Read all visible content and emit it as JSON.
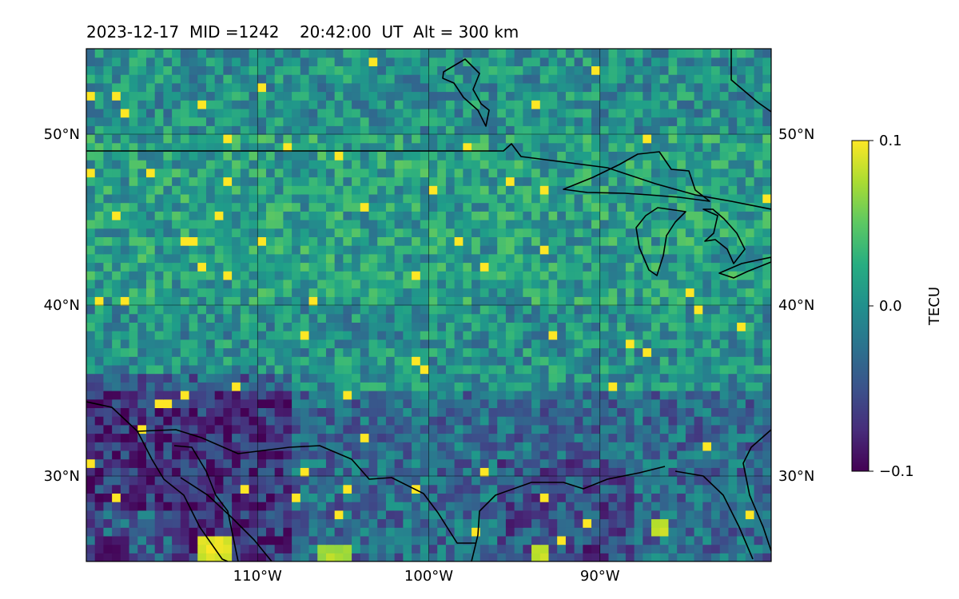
{
  "title": "2023-12-17  MID =1242    20:42:00  UT  Alt = 300 km",
  "chart_data": {
    "type": "heatmap",
    "title": "2023-12-17  MID =1242    20:42:00  UT  Alt = 300 km",
    "map_extent": {
      "lon": [
        -120,
        -80
      ],
      "lat": [
        25,
        55
      ]
    },
    "xlabel": "",
    "ylabel": "",
    "x_ticks": [
      {
        "value": -110,
        "label": "110°W"
      },
      {
        "value": -100,
        "label": "100°W"
      },
      {
        "value": -90,
        "label": "90°W"
      }
    ],
    "y_ticks": [
      {
        "value": 30,
        "label": "30°N"
      },
      {
        "value": 40,
        "label": "40°N"
      },
      {
        "value": 50,
        "label": "50°N"
      }
    ],
    "grid": true,
    "colormap": "viridis",
    "colorbar": {
      "label": "TECU",
      "range": [
        -0.1,
        0.1
      ],
      "ticks": [
        {
          "value": 0.1,
          "label": "0.1"
        },
        {
          "value": 0.0,
          "label": "0.0"
        },
        {
          "value": -0.1,
          "label": "−0.1"
        }
      ]
    },
    "regional_pattern": [
      {
        "region": "north of 50°N",
        "value": 0.0
      },
      {
        "region": "40°N–50°N",
        "value": 0.01
      },
      {
        "region": "southwest, 30°N–35°N, 110°W–120°W",
        "value": -0.07
      },
      {
        "region": "near 29°N, 90°W–95°W",
        "value": -0.05
      },
      {
        "region": "near 26°N, 112°W",
        "value": 0.1
      },
      {
        "region": "near 27°N, 86°W",
        "value": 0.09
      }
    ]
  },
  "colors": {
    "viridis_low": "#440154",
    "viridis_mid": "#21908d",
    "viridis_high": "#fde725",
    "coastline": "#000000",
    "grid": "#000000"
  }
}
